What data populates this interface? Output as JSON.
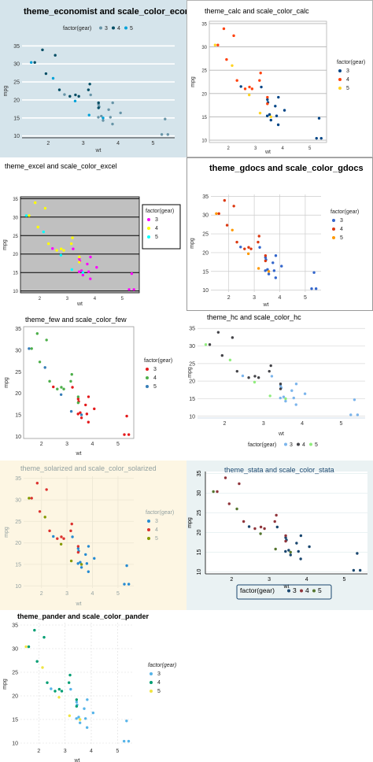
{
  "chart_data": [
    {
      "id": "economist",
      "type": "scatter",
      "title": "theme_economist and scale_color_economist",
      "xlabel": "wt",
      "ylabel": "mpg",
      "xlim": [
        1.25,
        5.62
      ],
      "ylim": [
        9.5,
        35.5
      ],
      "xticks": [
        2,
        3,
        4,
        5
      ],
      "yticks": [
        10,
        15,
        20,
        25,
        30,
        35
      ],
      "legend_title": "factor(gear)",
      "legend_position": "top",
      "series": [
        {
          "name": "3",
          "color": "#6794a7",
          "x": [
            3.215,
            3.44,
            3.46,
            3.57,
            4.07,
            3.73,
            3.78,
            5.25,
            5.424,
            5.345,
            2.465,
            3.52,
            3.435,
            3.84,
            3.845
          ],
          "y": [
            21.4,
            18.7,
            18.1,
            14.3,
            16.4,
            17.3,
            15.2,
            10.4,
            10.4,
            14.7,
            21.5,
            15.5,
            15.2,
            13.3,
            19.2
          ]
        },
        {
          "name": "4",
          "color": "#014d64",
          "x": [
            2.62,
            2.875,
            2.32,
            3.19,
            3.15,
            3.44,
            3.44,
            2.2,
            1.615,
            1.835,
            1.935,
            2.78
          ],
          "y": [
            21,
            21,
            22.8,
            24.4,
            22.8,
            19.2,
            17.8,
            32.4,
            30.4,
            33.9,
            27.3,
            21.4
          ]
        },
        {
          "name": "5",
          "color": "#01a2d9",
          "x": [
            2.14,
            1.513,
            3.17,
            2.77,
            3.57
          ],
          "y": [
            26,
            30.4,
            15.8,
            19.7,
            15
          ]
        }
      ]
    },
    {
      "id": "calc",
      "type": "scatter",
      "title": "theme_calc and scale_color_calc",
      "xlabel": "wt",
      "ylabel": "mpg",
      "xlim": [
        1.3,
        5.62
      ],
      "ylim": [
        9.5,
        35.5
      ],
      "xticks": [
        2,
        3,
        4,
        5
      ],
      "yticks": [
        10,
        15,
        20,
        25,
        30,
        35
      ],
      "legend_title": "factor(gear)",
      "legend_position": "right",
      "series": [
        {
          "name": "3",
          "color": "#004586",
          "x": [
            3.215,
            3.44,
            3.46,
            3.57,
            4.07,
            3.73,
            3.78,
            5.25,
            5.424,
            5.345,
            2.465,
            3.52,
            3.435,
            3.84,
            3.845
          ],
          "y": [
            21.4,
            18.7,
            18.1,
            14.3,
            16.4,
            17.3,
            15.2,
            10.4,
            10.4,
            14.7,
            21.5,
            15.5,
            15.2,
            13.3,
            19.2
          ]
        },
        {
          "name": "4",
          "color": "#ff420e",
          "x": [
            2.62,
            2.875,
            2.32,
            3.19,
            3.15,
            3.44,
            3.44,
            2.2,
            1.615,
            1.835,
            1.935,
            2.78
          ],
          "y": [
            21,
            21,
            22.8,
            24.4,
            22.8,
            19.2,
            17.8,
            32.4,
            30.4,
            33.9,
            27.3,
            21.4
          ]
        },
        {
          "name": "5",
          "color": "#ffd320",
          "x": [
            2.14,
            1.513,
            3.17,
            2.77,
            3.57
          ],
          "y": [
            26,
            30.4,
            15.8,
            19.7,
            15
          ]
        }
      ]
    },
    {
      "id": "excel",
      "type": "scatter",
      "title": "theme_excel and scale_color_excel",
      "xlabel": "wt",
      "ylabel": "mpg",
      "xlim": [
        1.3,
        5.62
      ],
      "ylim": [
        9.5,
        35.5
      ],
      "xticks": [
        2,
        3,
        4,
        5
      ],
      "yticks": [
        10,
        15,
        20,
        25,
        30,
        35
      ],
      "legend_title": "factor(gear)",
      "legend_position": "right",
      "series": [
        {
          "name": "3",
          "color": "#ff00ff",
          "x": [
            3.215,
            3.44,
            3.46,
            3.57,
            4.07,
            3.73,
            3.78,
            5.25,
            5.424,
            5.345,
            2.465,
            3.52,
            3.435,
            3.84,
            3.845
          ],
          "y": [
            21.4,
            18.7,
            18.1,
            14.3,
            16.4,
            17.3,
            15.2,
            10.4,
            10.4,
            14.7,
            21.5,
            15.5,
            15.2,
            13.3,
            19.2
          ]
        },
        {
          "name": "4",
          "color": "#ffff00",
          "x": [
            2.62,
            2.875,
            2.32,
            3.19,
            3.15,
            3.44,
            3.44,
            2.2,
            1.615,
            1.835,
            1.935,
            2.78
          ],
          "y": [
            21,
            21,
            22.8,
            24.4,
            22.8,
            19.2,
            17.8,
            32.4,
            30.4,
            33.9,
            27.3,
            21.4
          ]
        },
        {
          "name": "5",
          "color": "#00ffff",
          "x": [
            2.14,
            1.513,
            3.17,
            2.77,
            3.57
          ],
          "y": [
            26,
            30.4,
            15.8,
            19.7,
            15
          ]
        }
      ]
    },
    {
      "id": "gdocs",
      "type": "scatter",
      "title": "theme_gdocs and scale_color_gdocs",
      "xlabel": "wt",
      "ylabel": "mpg",
      "xlim": [
        1.3,
        5.62
      ],
      "ylim": [
        9.5,
        35.5
      ],
      "xticks": [
        2,
        3,
        4,
        5
      ],
      "yticks": [
        10,
        15,
        20,
        25,
        30,
        35
      ],
      "legend_title": "factor(gear)",
      "legend_position": "right",
      "series": [
        {
          "name": "3",
          "color": "#3366cc",
          "x": [
            3.215,
            3.44,
            3.46,
            3.57,
            4.07,
            3.73,
            3.78,
            5.25,
            5.424,
            5.345,
            2.465,
            3.52,
            3.435,
            3.84,
            3.845
          ],
          "y": [
            21.4,
            18.7,
            18.1,
            14.3,
            16.4,
            17.3,
            15.2,
            10.4,
            10.4,
            14.7,
            21.5,
            15.5,
            15.2,
            13.3,
            19.2
          ]
        },
        {
          "name": "4",
          "color": "#dc3912",
          "x": [
            2.62,
            2.875,
            2.32,
            3.19,
            3.15,
            3.44,
            3.44,
            2.2,
            1.615,
            1.835,
            1.935,
            2.78
          ],
          "y": [
            21,
            21,
            22.8,
            24.4,
            22.8,
            19.2,
            17.8,
            32.4,
            30.4,
            33.9,
            27.3,
            21.4
          ]
        },
        {
          "name": "5",
          "color": "#ff9900",
          "x": [
            2.14,
            1.513,
            3.17,
            2.77,
            3.57
          ],
          "y": [
            26,
            30.4,
            15.8,
            19.7,
            15
          ]
        }
      ]
    },
    {
      "id": "few",
      "type": "scatter",
      "title": "theme_few and scale_color_few",
      "xlabel": "wt",
      "ylabel": "mpg",
      "xlim": [
        1.3,
        5.62
      ],
      "ylim": [
        9.5,
        35.5
      ],
      "xticks": [
        2,
        3,
        4,
        5
      ],
      "yticks": [
        10,
        15,
        20,
        25,
        30,
        35
      ],
      "legend_title": "factor(gear)",
      "legend_position": "right",
      "series": [
        {
          "name": "3",
          "color": "#e41a1c",
          "x": [
            3.215,
            3.44,
            3.46,
            3.57,
            4.07,
            3.73,
            3.78,
            5.25,
            5.424,
            5.345,
            2.465,
            3.52,
            3.435,
            3.84,
            3.845
          ],
          "y": [
            21.4,
            18.7,
            18.1,
            14.3,
            16.4,
            17.3,
            15.2,
            10.4,
            10.4,
            14.7,
            21.5,
            15.5,
            15.2,
            13.3,
            19.2
          ]
        },
        {
          "name": "4",
          "color": "#4daf4a",
          "x": [
            2.62,
            2.875,
            2.32,
            3.19,
            3.15,
            3.44,
            3.44,
            2.2,
            1.615,
            1.835,
            1.935,
            2.78
          ],
          "y": [
            21,
            21,
            22.8,
            24.4,
            22.8,
            19.2,
            17.8,
            32.4,
            30.4,
            33.9,
            27.3,
            21.4
          ]
        },
        {
          "name": "5",
          "color": "#377eb8",
          "x": [
            2.14,
            1.513,
            3.17,
            2.77,
            3.57
          ],
          "y": [
            26,
            30.4,
            15.8,
            19.7,
            15
          ]
        }
      ]
    },
    {
      "id": "hc",
      "type": "scatter",
      "title": "theme_hc and scale_color_hc",
      "xlabel": "wt",
      "ylabel": "mpg",
      "xlim": [
        1.3,
        5.62
      ],
      "ylim": [
        9.5,
        35.5
      ],
      "xticks": [
        2,
        3,
        4,
        5
      ],
      "yticks": [
        10,
        15,
        20,
        25,
        30,
        35
      ],
      "legend_title": "factor(gear)",
      "legend_position": "bottom",
      "series": [
        {
          "name": "3",
          "color": "#7cb5ec",
          "x": [
            3.215,
            3.44,
            3.46,
            3.57,
            4.07,
            3.73,
            3.78,
            5.25,
            5.424,
            5.345,
            2.465,
            3.52,
            3.435,
            3.84,
            3.845
          ],
          "y": [
            21.4,
            18.7,
            18.1,
            14.3,
            16.4,
            17.3,
            15.2,
            10.4,
            10.4,
            14.7,
            21.5,
            15.5,
            15.2,
            13.3,
            19.2
          ]
        },
        {
          "name": "4",
          "color": "#434348",
          "x": [
            2.62,
            2.875,
            2.32,
            3.19,
            3.15,
            3.44,
            3.44,
            2.2,
            1.615,
            1.835,
            1.935,
            2.78
          ],
          "y": [
            21,
            21,
            22.8,
            24.4,
            22.8,
            19.2,
            17.8,
            32.4,
            30.4,
            33.9,
            27.3,
            21.4
          ]
        },
        {
          "name": "5",
          "color": "#90ed7d",
          "x": [
            2.14,
            1.513,
            3.17,
            2.77,
            3.57
          ],
          "y": [
            26,
            30.4,
            15.8,
            19.7,
            15
          ]
        }
      ]
    },
    {
      "id": "solarized",
      "type": "scatter",
      "title": "theme_solarized and scale_color_solarized",
      "xlabel": "wt",
      "ylabel": "mpg",
      "xlim": [
        1.3,
        5.62
      ],
      "ylim": [
        9.5,
        35.5
      ],
      "xticks": [
        2,
        3,
        4,
        5
      ],
      "yticks": [
        10,
        15,
        20,
        25,
        30,
        35
      ],
      "legend_title": "factor(gear)",
      "legend_position": "right",
      "series": [
        {
          "name": "3",
          "color": "#268bd2",
          "x": [
            3.215,
            3.44,
            3.46,
            3.57,
            4.07,
            3.73,
            3.78,
            5.25,
            5.424,
            5.345,
            2.465,
            3.52,
            3.435,
            3.84,
            3.845
          ],
          "y": [
            21.4,
            18.7,
            18.1,
            14.3,
            16.4,
            17.3,
            15.2,
            10.4,
            10.4,
            14.7,
            21.5,
            15.5,
            15.2,
            13.3,
            19.2
          ]
        },
        {
          "name": "4",
          "color": "#dc322f",
          "x": [
            2.62,
            2.875,
            2.32,
            3.19,
            3.15,
            3.44,
            3.44,
            2.2,
            1.615,
            1.835,
            1.935,
            2.78
          ],
          "y": [
            21,
            21,
            22.8,
            24.4,
            22.8,
            19.2,
            17.8,
            32.4,
            30.4,
            33.9,
            27.3,
            21.4
          ]
        },
        {
          "name": "5",
          "color": "#859900",
          "x": [
            2.14,
            1.513,
            3.17,
            2.77,
            3.57
          ],
          "y": [
            26,
            30.4,
            15.8,
            19.7,
            15
          ]
        }
      ]
    },
    {
      "id": "stata",
      "type": "scatter",
      "title": "theme_stata and scale_color_stata",
      "xlabel": "wt",
      "ylabel": "mpg",
      "xlim": [
        1.3,
        5.62
      ],
      "ylim": [
        9.5,
        35.5
      ],
      "xticks": [
        2,
        3,
        4,
        5
      ],
      "yticks": [
        10,
        15,
        20,
        25,
        30,
        35
      ],
      "legend_title": "factor(gear)",
      "legend_position": "bottom",
      "series": [
        {
          "name": "3",
          "color": "#1a476f",
          "x": [
            3.215,
            3.44,
            3.46,
            3.57,
            4.07,
            3.73,
            3.78,
            5.25,
            5.424,
            5.345,
            2.465,
            3.52,
            3.435,
            3.84,
            3.845
          ],
          "y": [
            21.4,
            18.7,
            18.1,
            14.3,
            16.4,
            17.3,
            15.2,
            10.4,
            10.4,
            14.7,
            21.5,
            15.5,
            15.2,
            13.3,
            19.2
          ]
        },
        {
          "name": "4",
          "color": "#90353b",
          "x": [
            2.62,
            2.875,
            2.32,
            3.19,
            3.15,
            3.44,
            3.44,
            2.2,
            1.615,
            1.835,
            1.935,
            2.78
          ],
          "y": [
            21,
            21,
            22.8,
            24.4,
            22.8,
            19.2,
            17.8,
            32.4,
            30.4,
            33.9,
            27.3,
            21.4
          ]
        },
        {
          "name": "5",
          "color": "#55752f",
          "x": [
            2.14,
            1.513,
            3.17,
            2.77,
            3.57
          ],
          "y": [
            26,
            30.4,
            15.8,
            19.7,
            15
          ]
        }
      ]
    },
    {
      "id": "pander",
      "type": "scatter",
      "title": "theme_pander and scale_color_pander",
      "xlabel": "wt",
      "ylabel": "mpg",
      "xlim": [
        1.3,
        5.62
      ],
      "ylim": [
        9.5,
        35.5
      ],
      "xticks": [
        2,
        3,
        4,
        5
      ],
      "yticks": [
        10,
        15,
        20,
        25,
        30,
        35
      ],
      "legend_title": "factor(gear)",
      "legend_position": "right",
      "series": [
        {
          "name": "3",
          "color": "#56b4e9",
          "x": [
            3.215,
            3.44,
            3.46,
            3.57,
            4.07,
            3.73,
            3.78,
            5.25,
            5.424,
            5.345,
            2.465,
            3.52,
            3.435,
            3.84,
            3.845
          ],
          "y": [
            21.4,
            18.7,
            18.1,
            14.3,
            16.4,
            17.3,
            15.2,
            10.4,
            10.4,
            14.7,
            21.5,
            15.5,
            15.2,
            13.3,
            19.2
          ]
        },
        {
          "name": "4",
          "color": "#009e73",
          "x": [
            2.62,
            2.875,
            2.32,
            3.19,
            3.15,
            3.44,
            3.44,
            2.2,
            1.615,
            1.835,
            1.935,
            2.78
          ],
          "y": [
            21,
            21,
            22.8,
            24.4,
            22.8,
            19.2,
            17.8,
            32.4,
            30.4,
            33.9,
            27.3,
            21.4
          ]
        },
        {
          "name": "5",
          "color": "#f0e442",
          "x": [
            2.14,
            1.513,
            3.17,
            2.77,
            3.57
          ],
          "y": [
            26,
            30.4,
            15.8,
            19.7,
            15
          ]
        }
      ]
    }
  ]
}
